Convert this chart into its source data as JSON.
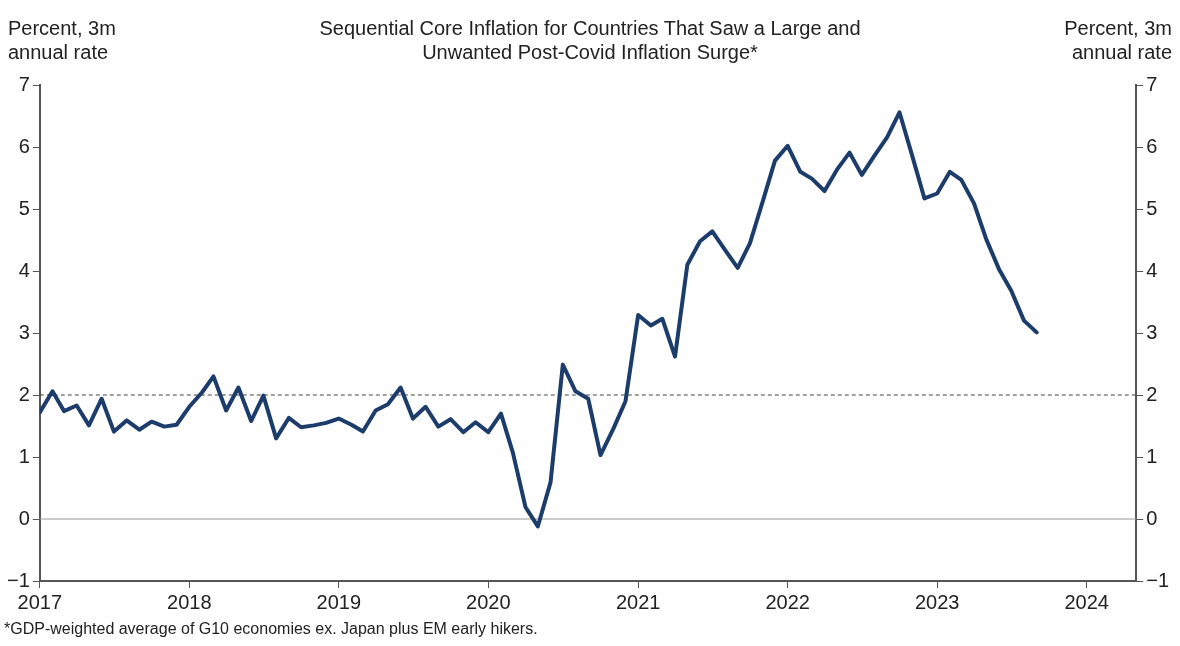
{
  "chart_data": {
    "type": "line",
    "title": "Sequential Core Inflation for Countries That Saw a Large and Unwanted Post-Covid Inflation Surge*",
    "ylabel": "Percent, 3m annual rate",
    "y2label": "Percent, 3m annual rate",
    "annotations": [
      "*GDP-weighted average of G10 economies ex. Japan plus EM early hikers."
    ],
    "x": [
      "2017-01",
      "2017-02",
      "2017-03",
      "2017-04",
      "2017-05",
      "2017-06",
      "2017-07",
      "2017-08",
      "2017-09",
      "2017-10",
      "2017-11",
      "2017-12",
      "2018-01",
      "2018-02",
      "2018-03",
      "2018-04",
      "2018-05",
      "2018-06",
      "2018-07",
      "2018-08",
      "2018-09",
      "2018-10",
      "2018-11",
      "2018-12",
      "2019-01",
      "2019-02",
      "2019-03",
      "2019-04",
      "2019-05",
      "2019-06",
      "2019-07",
      "2019-08",
      "2019-09",
      "2019-10",
      "2019-11",
      "2019-12",
      "2020-01",
      "2020-02",
      "2020-03",
      "2020-04",
      "2020-05",
      "2020-06",
      "2020-07",
      "2020-08",
      "2020-09",
      "2020-10",
      "2020-11",
      "2020-12",
      "2021-01",
      "2021-02",
      "2021-03",
      "2021-04",
      "2021-05",
      "2021-06",
      "2021-07",
      "2021-08",
      "2021-09",
      "2021-10",
      "2021-11",
      "2021-12",
      "2022-01",
      "2022-02",
      "2022-03",
      "2022-04",
      "2022-05",
      "2022-06",
      "2022-07",
      "2022-08",
      "2022-09",
      "2022-10",
      "2022-11",
      "2022-12",
      "2023-01",
      "2023-02",
      "2023-03",
      "2023-04",
      "2023-05",
      "2023-06",
      "2023-07",
      "2023-08",
      "2023-09"
    ],
    "series": [
      {
        "color": "#1c3d6b",
        "values": [
          1.72,
          2.06,
          1.74,
          1.83,
          1.51,
          1.94,
          1.41,
          1.59,
          1.44,
          1.57,
          1.49,
          1.52,
          1.81,
          2.04,
          2.3,
          1.75,
          2.12,
          1.58,
          1.99,
          1.3,
          1.63,
          1.48,
          1.51,
          1.55,
          1.62,
          1.52,
          1.41,
          1.75,
          1.85,
          2.12,
          1.62,
          1.81,
          1.49,
          1.61,
          1.4,
          1.56,
          1.4,
          1.7,
          1.07,
          0.19,
          -0.12,
          0.59,
          2.49,
          2.06,
          1.94,
          1.03,
          1.45,
          1.9,
          3.29,
          3.12,
          3.23,
          2.62,
          4.1,
          4.48,
          4.64,
          4.34,
          4.05,
          4.45,
          5.12,
          5.78,
          6.02,
          5.6,
          5.49,
          5.29,
          5.63,
          5.91,
          5.55,
          5.86,
          6.16,
          6.56,
          5.86,
          5.17,
          5.25,
          5.6,
          5.47,
          5.09,
          4.51,
          4.03,
          3.68,
          3.2,
          3.01
        ]
      }
    ],
    "xlim": [
      "2017-01",
      "2024-05"
    ],
    "xticks": [
      "2017",
      "2018",
      "2019",
      "2020",
      "2021",
      "2022",
      "2023",
      "2024"
    ],
    "ylim": [
      -1,
      7
    ],
    "yticks": [
      -1,
      0,
      1,
      2,
      3,
      4,
      5,
      6,
      7
    ],
    "y2lim": [
      -1,
      7
    ],
    "y2ticks": [
      -1,
      0,
      1,
      2,
      3,
      4,
      5,
      6,
      7
    ],
    "ref_lines": [
      {
        "axis": "y",
        "value": 2,
        "line_style": "dashed",
        "color": "#444444"
      },
      {
        "axis": "y",
        "value": 0,
        "line_style": "solid",
        "color": "#999999"
      }
    ],
    "grid": false,
    "legend": false,
    "marker": "none",
    "line_style": "solid"
  }
}
